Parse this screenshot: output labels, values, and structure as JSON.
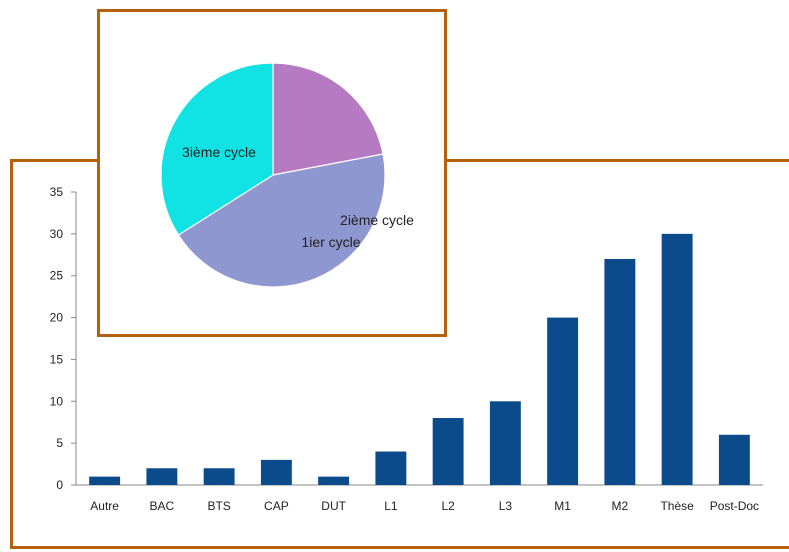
{
  "chart_data": [
    {
      "type": "bar",
      "categories": [
        "Autre",
        "BAC",
        "BTS",
        "CAP",
        "DUT",
        "L1",
        "L2",
        "L3",
        "M1",
        "M2",
        "Thèse",
        "Post-Doc"
      ],
      "values": [
        1,
        2,
        2,
        3,
        1,
        4,
        8,
        10,
        20,
        27,
        30,
        6
      ],
      "yticks": [
        "0",
        "5",
        "10",
        "15",
        "20",
        "25",
        "30",
        "35"
      ],
      "ylim": [
        0,
        35
      ],
      "title": "",
      "xlabel": "",
      "ylabel": "",
      "grid": false,
      "color": "#0b4a8b"
    },
    {
      "type": "pie",
      "labels": [
        "1ier cycle",
        "2ième cycle",
        "3ième cycle"
      ],
      "values": [
        22,
        44,
        34
      ],
      "colors": [
        "#b57ac2",
        "#8e97cf",
        "#11e3e5"
      ],
      "title": ""
    }
  ],
  "frame_color": "#b5600e"
}
